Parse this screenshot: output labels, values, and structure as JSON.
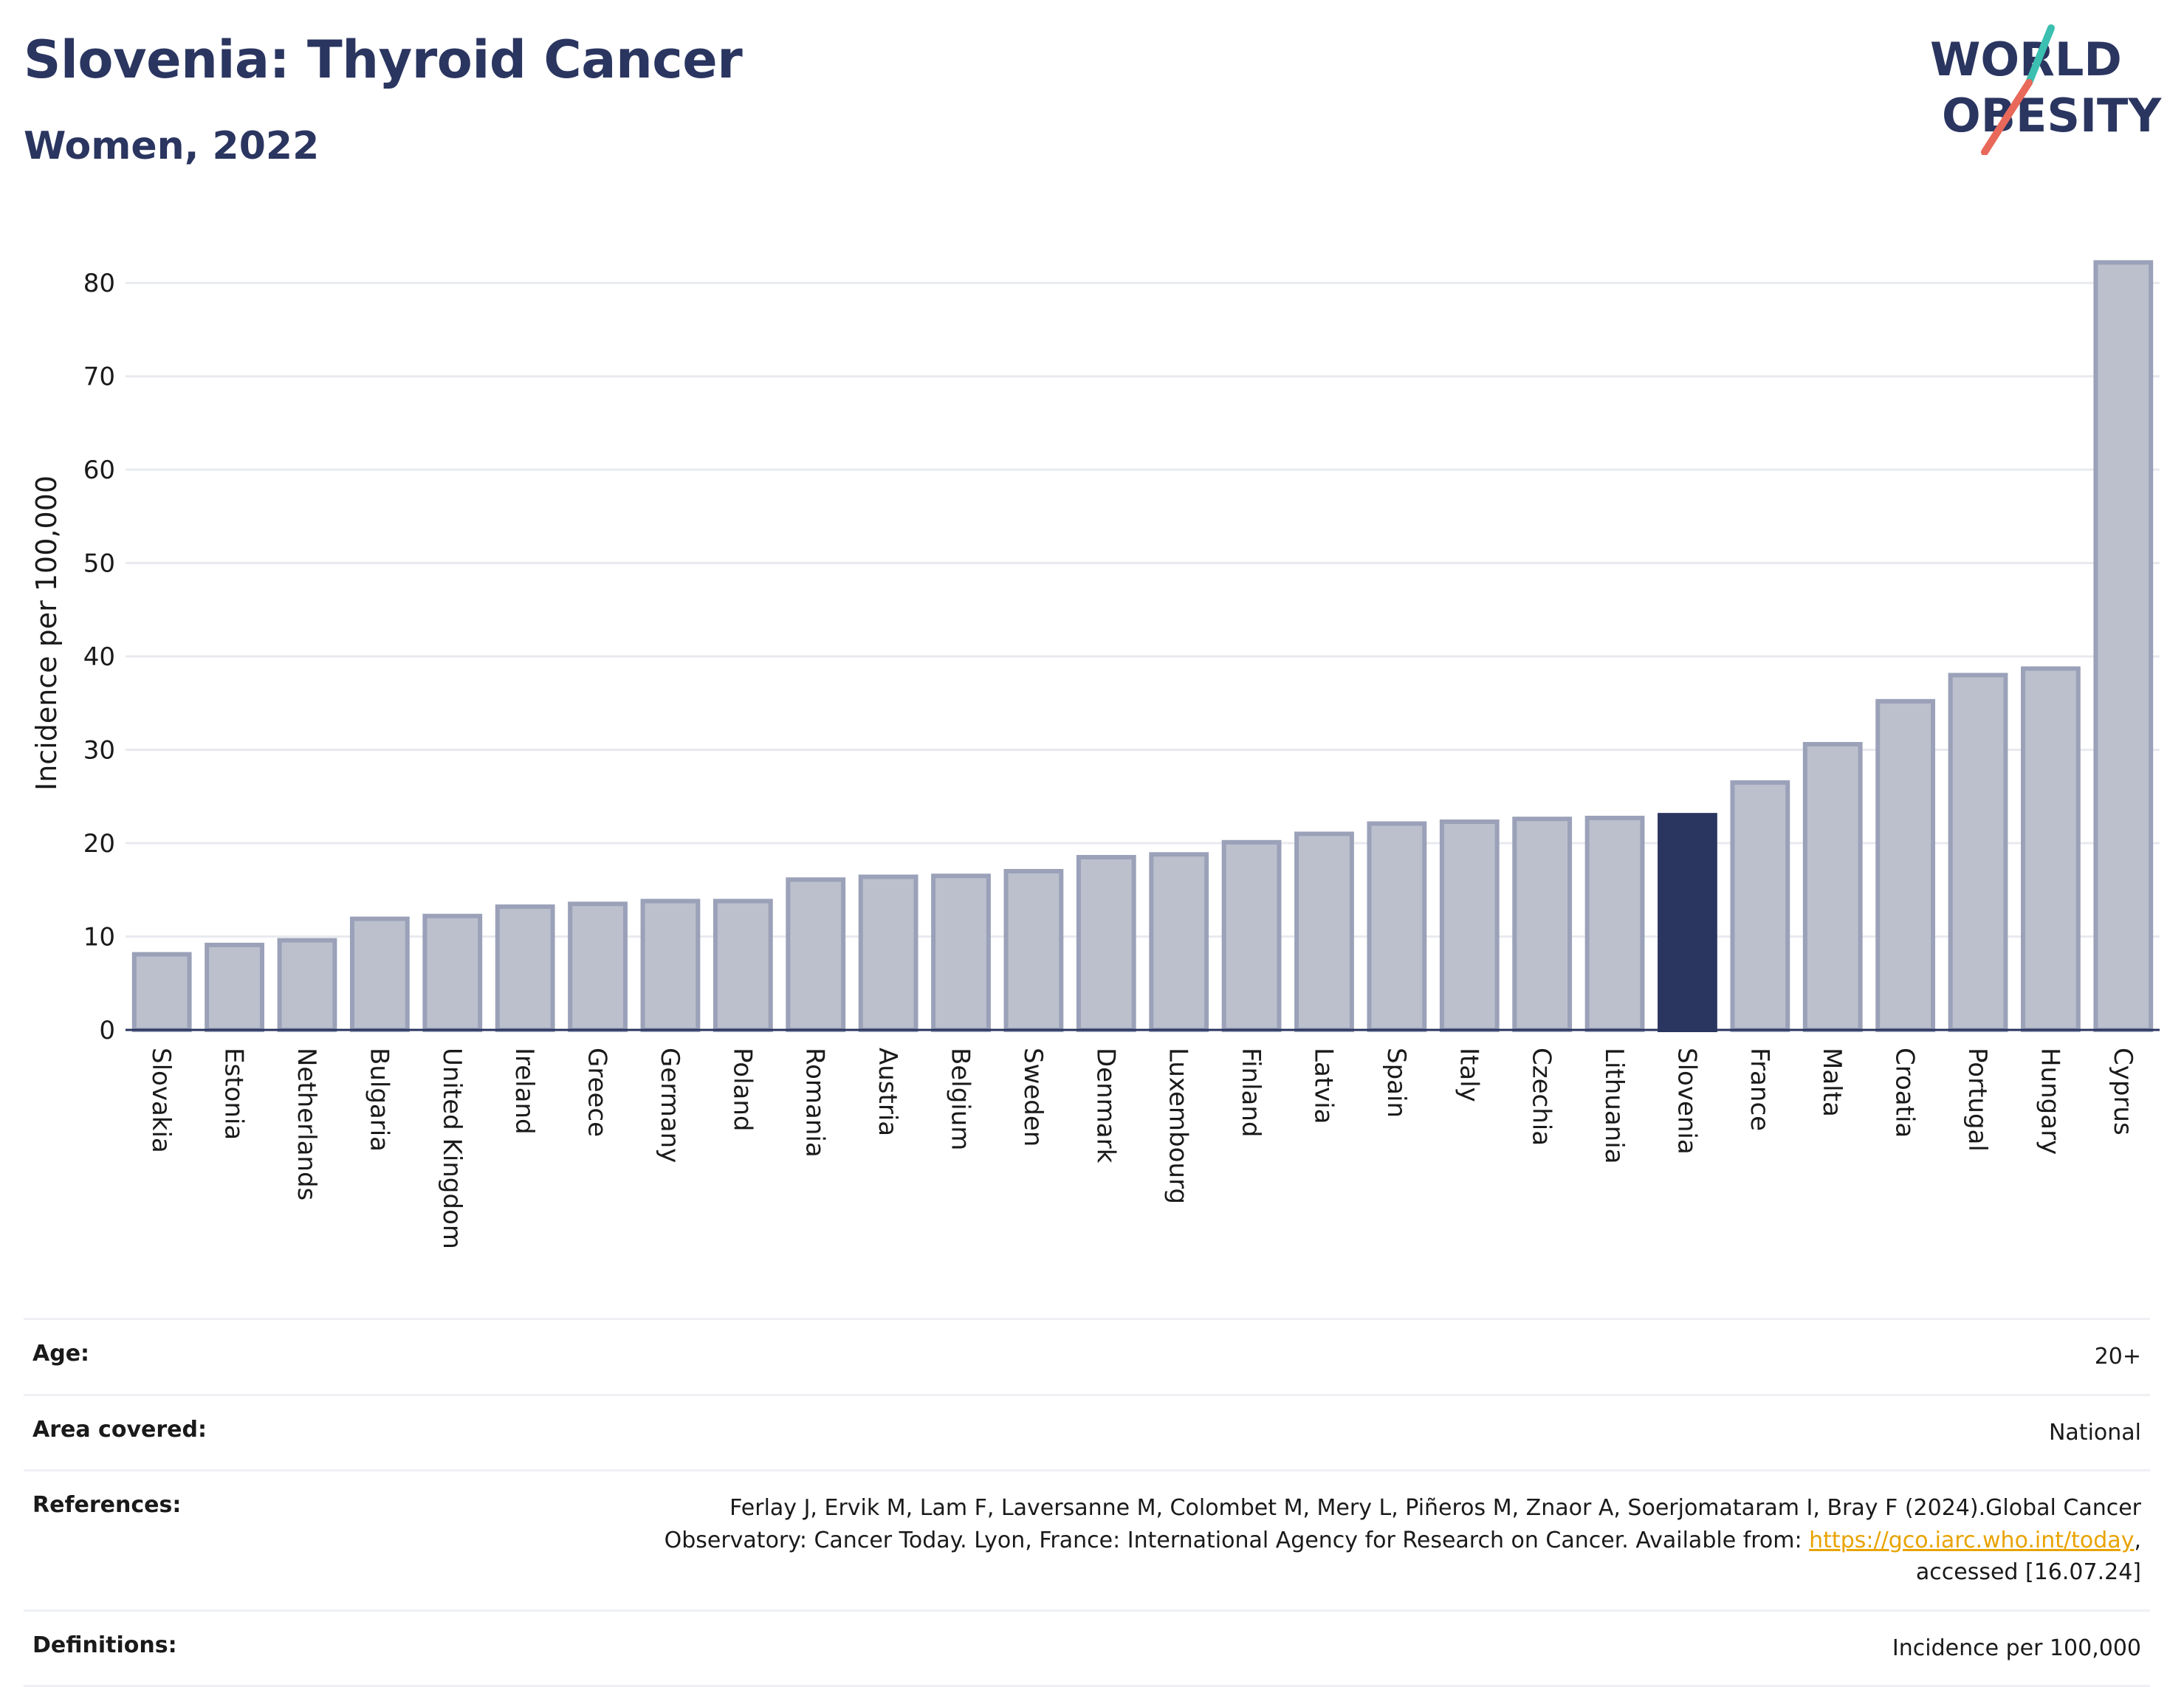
{
  "header": {
    "title": "Slovenia: Thyroid Cancer",
    "subtitle": "Women, 2022"
  },
  "logo": {
    "line1": "WORLD",
    "line2": "OBESITY",
    "accent_teal": "#3bbfb0",
    "accent_red": "#e8685a"
  },
  "colors": {
    "bar_default": "#bcc0cd",
    "bar_border": "#9aa1b8",
    "bar_highlight": "#2a3560",
    "grid": "#e8eaef",
    "title": "#2a3560"
  },
  "chart_data": {
    "type": "bar",
    "ylabel": "Incidence per 100,000",
    "xlabel": "",
    "ylim": [
      0,
      85
    ],
    "yticks": [
      0,
      10,
      20,
      30,
      40,
      50,
      60,
      70,
      80
    ],
    "grid": true,
    "highlight": "Slovenia",
    "categories": [
      "Slovakia",
      "Estonia",
      "Netherlands",
      "Bulgaria",
      "United Kingdom",
      "Ireland",
      "Greece",
      "Germany",
      "Poland",
      "Romania",
      "Austria",
      "Belgium",
      "Sweden",
      "Denmark",
      "Luxembourg",
      "Finland",
      "Latvia",
      "Spain",
      "Italy",
      "Czechia",
      "Lithuania",
      "Slovenia",
      "France",
      "Malta",
      "Croatia",
      "Portugal",
      "Hungary",
      "Cyprus"
    ],
    "values": [
      8.1,
      9.1,
      9.6,
      11.9,
      12.2,
      13.2,
      13.5,
      13.8,
      13.8,
      16.1,
      16.4,
      16.5,
      17.0,
      18.5,
      18.8,
      20.1,
      21.0,
      22.1,
      22.3,
      22.6,
      22.7,
      23.0,
      26.5,
      30.6,
      35.2,
      38.0,
      38.7,
      82.2
    ]
  },
  "info": {
    "age_label": "Age:",
    "age_value": "20+",
    "area_label": "Area covered:",
    "area_value": "National",
    "references_label": "References:",
    "references_line1": "Ferlay J, Ervik M, Lam F, Laversanne M, Colombet M, Mery L, Piñeros M, Znaor A, Soerjomataram I, Bray F (2024).Global Cancer",
    "references_line2_pre": "Observatory: Cancer Today. Lyon, France: International Agency for Research on Cancer. Available from: ",
    "references_link": "https://gco.iarc.who.int/today",
    "references_line2_post": ",",
    "references_line3": "accessed [16.07.24]",
    "definitions_label": "Definitions:",
    "definitions_value": "Incidence per 100,000"
  }
}
